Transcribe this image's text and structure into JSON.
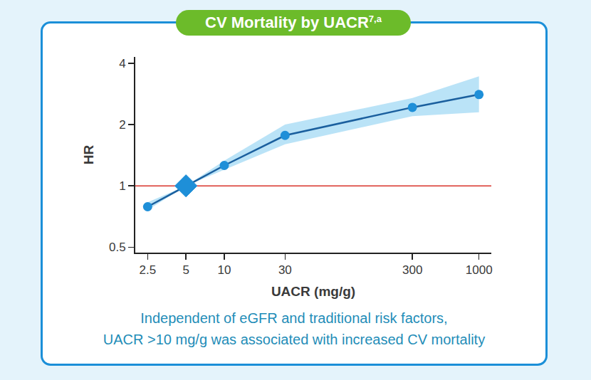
{
  "chart_data": {
    "type": "line",
    "title": "CV Mortality by UACR",
    "title_superscript": "7,a",
    "x_label": "UACR (mg/g)",
    "y_label": "HR",
    "caption": [
      "Independent of eGFR and traditional risk factors,",
      "UACR >10 mg/g was associated with increased CV mortality"
    ],
    "x": [
      2.5,
      5,
      10,
      30,
      300,
      1000
    ],
    "values": [
      0.79,
      1,
      1.26,
      1.77,
      2.43,
      2.81
    ],
    "ci_lower": [
      0.76,
      1,
      1.2,
      1.6,
      2.2,
      2.3
    ],
    "ci_upper": [
      0.83,
      1,
      1.33,
      2.0,
      2.7,
      3.45
    ],
    "color": "#1a5f9e",
    "marker": "circle",
    "reference_point": {
      "x": 5,
      "value": 1,
      "marker": "diamond"
    },
    "reference_line": {
      "value": 1,
      "color": "#d9342b"
    },
    "log": true,
    "xlim": [
      2,
      1250
    ],
    "ylim": [
      0.47,
      4.3
    ],
    "xticks": [
      2.5,
      5,
      10,
      30,
      300,
      1000
    ],
    "yticks": [
      0.5,
      1,
      2,
      4
    ],
    "grid": false
  }
}
